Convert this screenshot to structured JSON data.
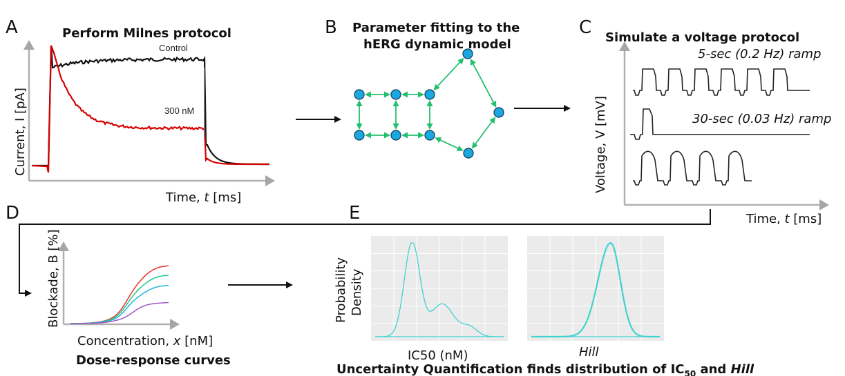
{
  "panels": {
    "A": {
      "letter": "A",
      "title": "Perform Milnes protocol",
      "ylabel": "Current, I [pA]",
      "xlabel_pre": "Time, ",
      "xlabel_var": "t",
      "xlabel_post": " [ms]",
      "control_label": "Control",
      "drug_label": "300 nM",
      "colors": {
        "control": "#111111",
        "drug": "#d80000"
      }
    },
    "B": {
      "letter": "B",
      "title_line1": "Parameter fitting to the",
      "title_line2": "hERG dynamic model",
      "colors": {
        "node": "#1aa8e0",
        "edge": "#22c06e"
      }
    },
    "C": {
      "letter": "C",
      "title": "Simulate a voltage protocol",
      "ramp1": "5-sec (0.2 Hz) ramp",
      "ramp2": "30-sec (0.03 Hz) ramp",
      "ylabel": "Voltage, V [mV]",
      "xlabel_pre": "Time, ",
      "xlabel_var": "t",
      "xlabel_post": " [ms]"
    },
    "D": {
      "letter": "D",
      "ylabel": "Blockade, B [%]",
      "xlabel_pre": "Concentration, ",
      "xlabel_var": "x",
      "xlabel_post": " [nM]",
      "caption": "Dose-response curves",
      "colors": [
        "#e8322b",
        "#1ec98a",
        "#22b4d8",
        "#9b59c6"
      ]
    },
    "E": {
      "letter": "E",
      "ylabel_line1": "Probability",
      "ylabel_line2": "Density",
      "plot1_xlabel": "IC50 (nM)",
      "plot2_xlabel": "Hill",
      "caption_pre": "Uncertainty Quantification finds distribution of IC",
      "caption_sub": "50",
      "caption_mid": " and ",
      "caption_hill": "Hill",
      "colors": {
        "curve": "#3fd3cf",
        "curve_dark": "#19b7b7",
        "panel_bg": "#ebebeb",
        "grid": "#ffffff"
      }
    }
  }
}
